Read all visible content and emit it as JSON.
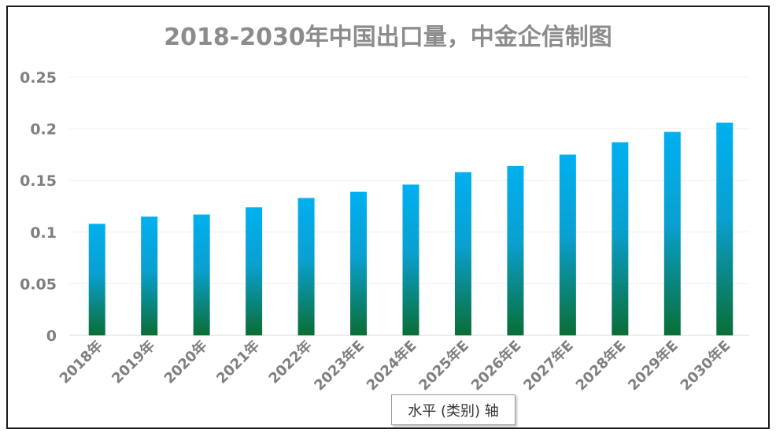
{
  "chart_data": {
    "type": "bar",
    "title": "2018-2030年中国出口量，中金企信制图",
    "categories": [
      "2018年",
      "2019年",
      "2020年",
      "2021年",
      "2022年",
      "2023年E",
      "2024年E",
      "2025年E",
      "2026年E",
      "2027年E",
      "2028年E",
      "2029年E",
      "2030年E"
    ],
    "values": [
      0.108,
      0.115,
      0.117,
      0.124,
      0.133,
      0.139,
      0.146,
      0.158,
      0.164,
      0.175,
      0.187,
      0.197,
      0.206
    ],
    "yticks": [
      "0",
      "0.05",
      "0.1",
      "0.15",
      "0.2",
      "0.25"
    ],
    "ylim": [
      0,
      0.25
    ],
    "xlabel": "",
    "ylabel": "",
    "grid": true,
    "bar_gradient": {
      "top": "#00b0f0",
      "bottom": "#0a6e35"
    }
  },
  "tooltip": {
    "text": "水平 (类别) 轴"
  }
}
